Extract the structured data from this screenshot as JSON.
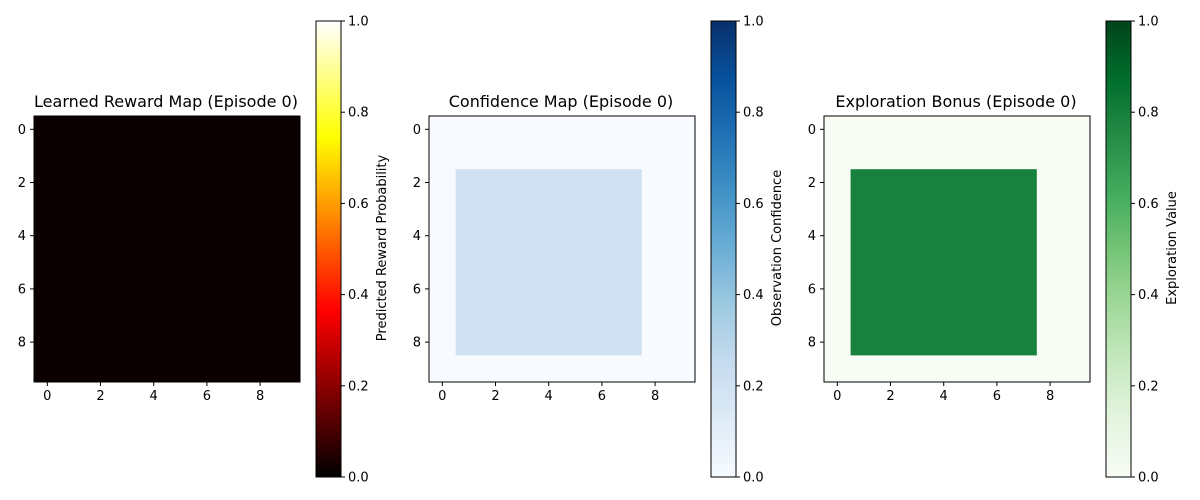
{
  "chart_data": [
    {
      "type": "heatmap",
      "title": "Learned Reward Map (Episode 0)",
      "colormap": "hot",
      "colorbar_label": "Predicted Reward Probability",
      "clim": [
        0,
        1
      ],
      "colorbar_ticks": [
        "0.0",
        "0.2",
        "0.4",
        "0.6",
        "0.8",
        "1.0"
      ],
      "x_ticks": [
        "0",
        "2",
        "4",
        "6",
        "8"
      ],
      "y_ticks": [
        "0",
        "2",
        "4",
        "6",
        "8"
      ],
      "grid_size": [
        10,
        10
      ],
      "values": "all cells 0.0",
      "inner_region": null,
      "background_value": 0.0
    },
    {
      "type": "heatmap",
      "title": "Confidence Map (Episode 0)",
      "colormap": "Blues",
      "colorbar_label": "Observation Confidence",
      "clim": [
        0,
        1
      ],
      "colorbar_ticks": [
        "0.0",
        "0.2",
        "0.4",
        "0.6",
        "0.8",
        "1.0"
      ],
      "x_ticks": [
        "0",
        "2",
        "4",
        "6",
        "8"
      ],
      "y_ticks": [
        "0",
        "2",
        "4",
        "6",
        "8"
      ],
      "grid_size": [
        10,
        10
      ],
      "background_value": 0.0,
      "inner_region": {
        "cols": [
          1,
          7
        ],
        "rows": [
          2,
          8
        ],
        "value": 0.2
      }
    },
    {
      "type": "heatmap",
      "title": "Exploration Bonus (Episode 0)",
      "colormap": "Greens",
      "colorbar_label": "Exploration Value",
      "clim": [
        0,
        1
      ],
      "colorbar_ticks": [
        "0.0",
        "0.2",
        "0.4",
        "0.6",
        "0.8",
        "1.0"
      ],
      "x_ticks": [
        "0",
        "2",
        "4",
        "6",
        "8"
      ],
      "y_ticks": [
        "0",
        "2",
        "4",
        "6",
        "8"
      ],
      "grid_size": [
        10,
        10
      ],
      "background_value": 0.0,
      "inner_region": {
        "cols": [
          1,
          7
        ],
        "rows": [
          2,
          8
        ],
        "value": 0.8
      }
    }
  ],
  "colors": {
    "hot_stops": [
      "#0a0000",
      "#ff0000",
      "#ffff00",
      "#ffffff"
    ],
    "blues_stops": [
      "#f7fbff",
      "#deebf7",
      "#c6dbef",
      "#9ecae1",
      "#6baed6",
      "#4292c6",
      "#2171b5",
      "#08519c",
      "#08306b"
    ],
    "greens_stops": [
      "#f7fcf5",
      "#e5f5e0",
      "#c7e9c0",
      "#a1d99b",
      "#74c476",
      "#41ab5d",
      "#238b45",
      "#006d2c",
      "#00441b"
    ],
    "confidence_background": "#f7fbff",
    "confidence_inner": "#d0e1f2",
    "exploration_background": "#f7fcf5",
    "exploration_inner": "#17813d",
    "reward_fill": "#0b0000"
  }
}
